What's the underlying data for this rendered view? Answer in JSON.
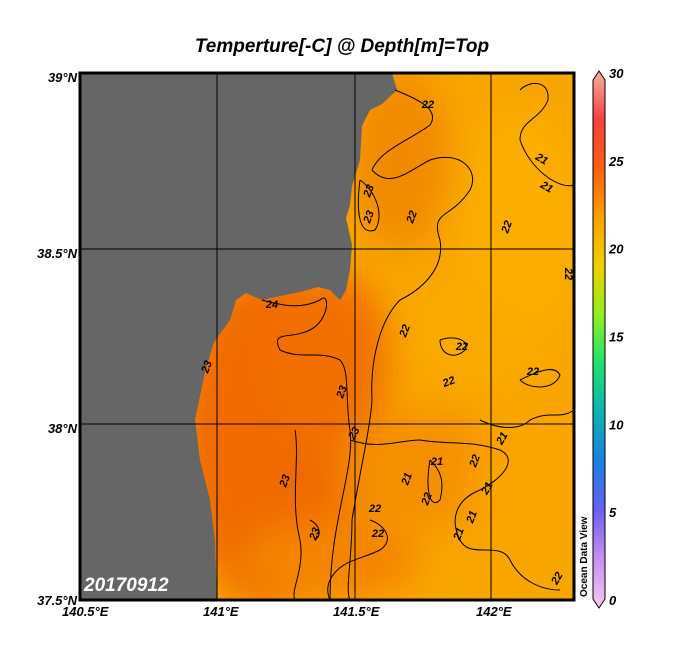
{
  "title": "Temperture[-C] @ Depth[m]=Top",
  "date_label": "20170912",
  "watermark": "Ocean Data View",
  "map": {
    "lon_range": [
      140.5,
      142.3
    ],
    "lat_range": [
      37.5,
      39.0
    ],
    "lon_ticks": [
      "140.5°E",
      "141°E",
      "141.5°E",
      "142°E"
    ],
    "lat_ticks": [
      "39°N",
      "38.5°N",
      "38°N",
      "37.5°N"
    ],
    "grid": true,
    "land_color": "#666666",
    "contour_labels": [
      "22",
      "21",
      "21",
      "23",
      "23",
      "22",
      "22",
      "22",
      "24",
      "23",
      "23",
      "22",
      "22",
      "22",
      "23",
      "21",
      "21",
      "22",
      "22",
      "21",
      "21",
      "21",
      "22",
      "22",
      "23",
      "23",
      "22",
      "22",
      "21"
    ]
  },
  "colorbar": {
    "ticks": [
      "30",
      "25",
      "20",
      "15",
      "10",
      "5",
      "0"
    ],
    "range": [
      0,
      30
    ],
    "colors": [
      "#f8c8f0",
      "#c890f0",
      "#6a60f0",
      "#1a80e0",
      "#10b0b0",
      "#20e070",
      "#90f020",
      "#f0d000",
      "#f9a200",
      "#f86010",
      "#f44040",
      "#f4b0a0"
    ]
  }
}
